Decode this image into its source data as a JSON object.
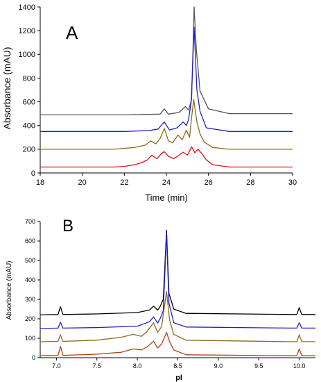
{
  "chart_data": [
    {
      "type": "line",
      "panel_label": "A",
      "xlabel": "Time (min)",
      "ylabel": "Absorbance (mAU)",
      "xlim": [
        18,
        30
      ],
      "ylim": [
        0,
        1400
      ],
      "xticks": [
        "18",
        "20",
        "22",
        "24",
        "26",
        "28",
        "30"
      ],
      "yticks": [
        "0",
        "200",
        "400",
        "600",
        "800",
        "1000",
        "1200",
        "1400"
      ],
      "grid": false,
      "legend": "none",
      "series": [
        {
          "color": "#555555",
          "x": [
            18,
            22,
            23.7,
            23.9,
            24.1,
            24.6,
            24.9,
            25.05,
            25.2,
            25.32,
            25.42,
            25.6,
            26,
            27,
            30
          ],
          "y": [
            490,
            490,
            496,
            540,
            496,
            510,
            560,
            530,
            620,
            1400,
            1050,
            690,
            540,
            500,
            500
          ]
        },
        {
          "color": "#1f1fc8",
          "x": [
            18,
            22,
            23.2,
            23.6,
            23.9,
            24.15,
            24.5,
            24.8,
            24.95,
            25.05,
            25.18,
            25.32,
            25.45,
            25.6,
            25.9,
            27,
            30
          ],
          "y": [
            350,
            350,
            358,
            370,
            430,
            362,
            380,
            430,
            400,
            450,
            600,
            1230,
            700,
            520,
            380,
            350,
            350
          ]
        },
        {
          "color": "#8b6b1e",
          "x": [
            18,
            21.5,
            22.5,
            23.0,
            23.25,
            23.5,
            23.7,
            23.9,
            24.1,
            24.3,
            24.55,
            24.75,
            24.95,
            25.1,
            25.2,
            25.3,
            25.45,
            25.6,
            25.8,
            26.2,
            27,
            30
          ],
          "y": [
            200,
            200,
            215,
            235,
            270,
            245,
            290,
            375,
            270,
            255,
            320,
            280,
            360,
            300,
            470,
            620,
            430,
            330,
            260,
            215,
            200,
            200
          ]
        },
        {
          "color": "#e01010",
          "x": [
            18,
            21.5,
            22.0,
            22.5,
            22.8,
            23.1,
            23.3,
            23.55,
            23.75,
            23.9,
            24.1,
            24.35,
            24.6,
            24.8,
            25.0,
            25.2,
            25.35,
            25.5,
            25.7,
            25.9,
            26.2,
            27,
            30
          ],
          "y": [
            50,
            50,
            55,
            70,
            85,
            110,
            150,
            120,
            160,
            180,
            140,
            120,
            150,
            175,
            150,
            220,
            170,
            200,
            160,
            110,
            70,
            50,
            50
          ]
        }
      ]
    },
    {
      "type": "line",
      "panel_label": "B",
      "xlabel": "pI",
      "ylabel": "Absorbance (mAU)",
      "xlim": [
        6.8,
        10.2
      ],
      "ylim": [
        0,
        700
      ],
      "xticks": [
        "7.0",
        "7.5",
        "8.0",
        "8.5",
        "9.0",
        "9.5",
        "10.0"
      ],
      "yticks": [
        "0",
        "100",
        "200",
        "300",
        "400",
        "500",
        "600",
        "700"
      ],
      "grid": false,
      "legend": "none",
      "series": [
        {
          "color": "#000000",
          "x": [
            6.8,
            7.02,
            7.05,
            7.08,
            7.5,
            8.0,
            8.15,
            8.2,
            8.25,
            8.28,
            8.32,
            8.36,
            8.39,
            8.45,
            8.6,
            9.9,
            9.97,
            10.0,
            10.03,
            10.2
          ],
          "y": [
            220,
            222,
            262,
            222,
            225,
            232,
            245,
            265,
            245,
            262,
            300,
            655,
            330,
            250,
            228,
            222,
            222,
            258,
            222,
            222
          ]
        },
        {
          "color": "#1f1fc8",
          "x": [
            6.8,
            7.02,
            7.05,
            7.08,
            7.5,
            8.0,
            8.15,
            8.2,
            8.25,
            8.28,
            8.32,
            8.36,
            8.39,
            8.45,
            8.6,
            9.9,
            9.97,
            10.0,
            10.03,
            10.2
          ],
          "y": [
            150,
            152,
            182,
            152,
            155,
            162,
            185,
            210,
            178,
            200,
            240,
            640,
            280,
            180,
            158,
            152,
            152,
            180,
            152,
            152
          ]
        },
        {
          "color": "#8b6b1e",
          "x": [
            6.8,
            7.02,
            7.05,
            7.08,
            7.5,
            7.8,
            7.95,
            8.05,
            8.12,
            8.2,
            8.25,
            8.3,
            8.36,
            8.4,
            8.45,
            8.6,
            9.9,
            9.97,
            10.0,
            10.03,
            10.2
          ],
          "y": [
            82,
            84,
            118,
            84,
            90,
            105,
            120,
            110,
            135,
            180,
            130,
            160,
            340,
            190,
            120,
            90,
            82,
            82,
            118,
            82,
            82
          ]
        },
        {
          "color": "#b83c1e",
          "x": [
            6.8,
            7.02,
            7.05,
            7.08,
            7.5,
            7.8,
            7.95,
            8.05,
            8.12,
            8.2,
            8.25,
            8.3,
            8.36,
            8.4,
            8.45,
            8.6,
            9.9,
            9.97,
            10.0,
            10.03,
            10.2
          ],
          "y": [
            10,
            12,
            58,
            12,
            18,
            28,
            45,
            40,
            55,
            85,
            50,
            70,
            130,
            80,
            40,
            15,
            10,
            10,
            45,
            10,
            10
          ]
        }
      ]
    }
  ]
}
